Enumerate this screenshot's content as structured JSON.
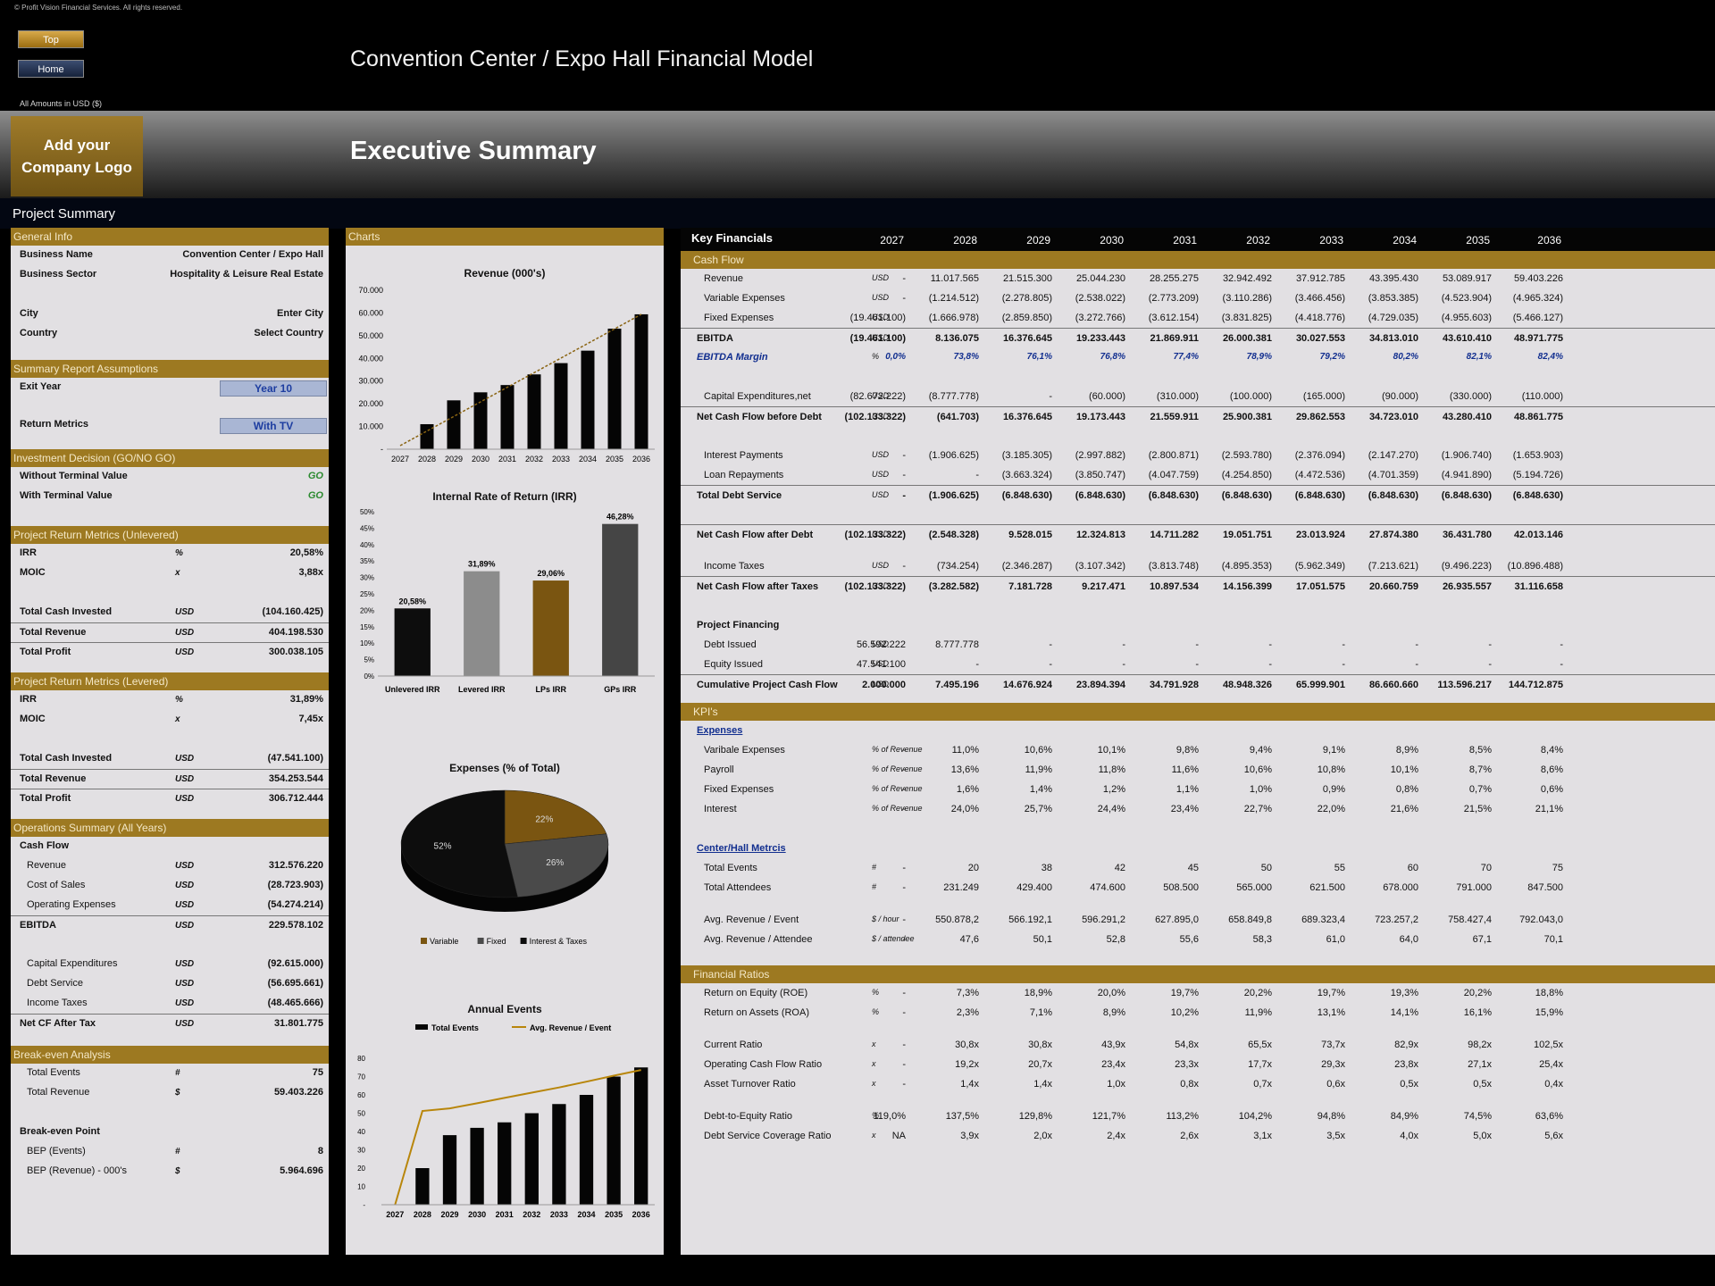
{
  "copyright": "© Profit Vision Financial Services. All rights reserved.",
  "nav": {
    "top": "Top",
    "home": "Home"
  },
  "main_title": "Convention Center / Expo Hall Financial Model",
  "amounts_note": "All Amounts in  USD ($)",
  "logo_line1": "Add your",
  "logo_line2": "Company Logo",
  "exec_title": "Executive Summary",
  "project_summary": "Project Summary",
  "general": {
    "header": "General Info",
    "rows": [
      {
        "label": "Business Name",
        "value": "Convention Center / Expo Hall"
      },
      {
        "label": "Business Sector",
        "value": "Hospitality & Leisure Real Estate"
      },
      {
        "label": "City",
        "value": "Enter City"
      },
      {
        "label": "Country",
        "value": "Select Country"
      }
    ]
  },
  "assumptions": {
    "header": "Summary  Report Assumptions",
    "exit_label": "Exit Year",
    "exit_value": "Year 10",
    "metrics_label": "Return Metrics",
    "metrics_value": "With TV"
  },
  "decision": {
    "header": "Investment Decision (GO/NO GO)",
    "rows": [
      {
        "label": "Without Terminal Value",
        "value": "GO"
      },
      {
        "label": "With Terminal Value",
        "value": "GO"
      }
    ]
  },
  "unlevered": {
    "header": "Project Return Metrics (Unlevered)",
    "rows": [
      {
        "label": "IRR",
        "unit": "%",
        "value": "20,58%"
      },
      {
        "label": "MOIC",
        "unit": "x",
        "value": "3,88x"
      },
      {
        "label": "Total Cash Invested",
        "unit": "USD",
        "value": "(104.160.425)"
      },
      {
        "label": "Total Revenue",
        "unit": "USD",
        "value": "404.198.530"
      },
      {
        "label": "Total Profit",
        "unit": "USD",
        "value": "300.038.105"
      }
    ]
  },
  "levered": {
    "header": "Project Return Metrics (Levered)",
    "rows": [
      {
        "label": "IRR",
        "unit": "%",
        "value": "31,89%"
      },
      {
        "label": "MOIC",
        "unit": "x",
        "value": "7,45x"
      },
      {
        "label": "Total Cash Invested",
        "unit": "USD",
        "value": "(47.541.100)"
      },
      {
        "label": "Total Revenue",
        "unit": "USD",
        "value": "354.253.544"
      },
      {
        "label": "Total Profit",
        "unit": "USD",
        "value": "306.712.444"
      }
    ]
  },
  "operations": {
    "header": "Operations Summary (All Years)",
    "cash_flow": "Cash Flow",
    "rows": [
      {
        "label": "Revenue",
        "unit": "USD",
        "value": "312.576.220"
      },
      {
        "label": "Cost of Sales",
        "unit": "USD",
        "value": "(28.723.903)"
      },
      {
        "label": "Operating Expenses",
        "unit": "USD",
        "value": "(54.274.214)"
      },
      {
        "label": "EBITDA",
        "unit": "USD",
        "value": "229.578.102"
      },
      {
        "label": "Capital Expenditures",
        "unit": "USD",
        "value": "(92.615.000)"
      },
      {
        "label": "Debt Service",
        "unit": "USD",
        "value": "(56.695.661)"
      },
      {
        "label": "Income Taxes",
        "unit": "USD",
        "value": "(48.465.666)"
      },
      {
        "label": "Net CF After Tax",
        "unit": "USD",
        "value": "31.801.775"
      }
    ]
  },
  "breakeven": {
    "header": "Break-even Analysis",
    "rows": [
      {
        "label": "Total Events",
        "unit": "#",
        "value": "75"
      },
      {
        "label": "Total Revenue",
        "unit": "$",
        "value": "59.403.226"
      }
    ],
    "point_label": "Break-even Point",
    "point_rows": [
      {
        "label": "BEP (Events)",
        "unit": "#",
        "value": "8"
      },
      {
        "label": "BEP (Revenue) - 000's",
        "unit": "$",
        "value": "5.964.696"
      }
    ]
  },
  "charts_header": "Charts",
  "chart_data": [
    {
      "type": "bar",
      "title": "Revenue (000's)",
      "categories": [
        "2027",
        "2028",
        "2029",
        "2030",
        "2031",
        "2032",
        "2033",
        "2034",
        "2035",
        "2036"
      ],
      "values": [
        0,
        11018,
        21515,
        25044,
        28255,
        32942,
        37913,
        43395,
        53090,
        59403
      ],
      "ylim": [
        0,
        70000
      ],
      "yticks": [
        "-",
        "10.000",
        "20.000",
        "30.000",
        "40.000",
        "50.000",
        "60.000",
        "70.000"
      ],
      "trendline": true
    },
    {
      "type": "bar",
      "title": "Internal Rate of Return (IRR)",
      "categories": [
        "Unlevered IRR",
        "Levered IRR",
        "LPs IRR",
        "GPs IRR"
      ],
      "values": [
        20.58,
        31.89,
        29.06,
        46.28
      ],
      "labels": [
        "20,58%",
        "31,89%",
        "29,06%",
        "46,28%"
      ],
      "colors": [
        "#0d0d0d",
        "#8c8c8c",
        "#7a5511",
        "#454545"
      ],
      "ylim": [
        0,
        50
      ],
      "yticks": [
        "0%",
        "5%",
        "10%",
        "15%",
        "20%",
        "25%",
        "30%",
        "35%",
        "40%",
        "45%",
        "50%"
      ]
    },
    {
      "type": "pie",
      "title": "Expenses (% of Total)",
      "slices": [
        {
          "name": "Variable",
          "value": 22,
          "label": "22%",
          "color": "#7a5511"
        },
        {
          "name": "Fixed",
          "value": 26,
          "label": "26%",
          "color": "#4a4a4a"
        },
        {
          "name": "Interest & Taxes",
          "value": 52,
          "label": "52%",
          "color": "#0d0d0d"
        }
      ]
    },
    {
      "type": "bar",
      "title": "Annual Events",
      "categories": [
        "2027",
        "2028",
        "2029",
        "2030",
        "2031",
        "2032",
        "2033",
        "2034",
        "2035",
        "2036"
      ],
      "series": [
        {
          "name": "Total Events",
          "values": [
            0,
            20,
            38,
            42,
            45,
            50,
            55,
            60,
            70,
            75
          ]
        },
        {
          "name": "Avg. Revenue / Event",
          "values": [
            0,
            550.9,
            566.2,
            596.3,
            627.9,
            658.8,
            689.3,
            723.3,
            758.4,
            792.0
          ]
        }
      ],
      "ylim": [
        0,
        80
      ],
      "yticks": [
        "-",
        "10",
        "20",
        "30",
        "40",
        "50",
        "60",
        "70",
        "80"
      ]
    }
  ],
  "key": {
    "title": "Key Financials",
    "years": [
      "2027",
      "2028",
      "2029",
      "2030",
      "2031",
      "2032",
      "2033",
      "2034",
      "2035",
      "2036"
    ]
  },
  "cashflow": {
    "header": "Cash Flow",
    "rows": [
      {
        "label": "Revenue",
        "unit": "USD",
        "sub": true,
        "values": [
          "-",
          "11.017.565",
          "21.515.300",
          "25.044.230",
          "28.255.275",
          "32.942.492",
          "37.912.785",
          "43.395.430",
          "53.089.917",
          "59.403.226"
        ]
      },
      {
        "label": "Variable Expenses",
        "unit": "USD",
        "sub": true,
        "values": [
          "-",
          "(1.214.512)",
          "(2.278.805)",
          "(2.538.022)",
          "(2.773.209)",
          "(3.110.286)",
          "(3.466.456)",
          "(3.853.385)",
          "(4.523.904)",
          "(4.965.324)"
        ]
      },
      {
        "label": "Fixed Expenses",
        "unit": "USD",
        "sub": true,
        "values": [
          "(19.461.100)",
          "(1.666.978)",
          "(2.859.850)",
          "(3.272.766)",
          "(3.612.154)",
          "(3.831.825)",
          "(4.418.776)",
          "(4.729.035)",
          "(4.955.603)",
          "(5.466.127)"
        ]
      },
      {
        "label": "EBITDA",
        "unit": "USD",
        "values": [
          "(19.461.100)",
          "8.136.075",
          "16.376.645",
          "19.233.443",
          "21.869.911",
          "26.000.381",
          "30.027.553",
          "34.813.010",
          "43.610.410",
          "48.971.775"
        ]
      },
      {
        "label": "EBITDA Margin",
        "unit": "%",
        "italic": true,
        "values": [
          "0,0%",
          "73,8%",
          "76,1%",
          "76,8%",
          "77,4%",
          "78,9%",
          "79,2%",
          "80,2%",
          "82,1%",
          "82,4%"
        ]
      },
      {
        "label": "Capital Expenditures,net",
        "unit": "USD",
        "sub": true,
        "values": [
          "(82.672.222)",
          "(8.777.778)",
          "-",
          "(60.000)",
          "(310.000)",
          "(100.000)",
          "(165.000)",
          "(90.000)",
          "(330.000)",
          "(110.000)"
        ]
      },
      {
        "label": "Net Cash Flow before Debt",
        "unit": "USD",
        "values": [
          "(102.133.322)",
          "(641.703)",
          "16.376.645",
          "19.173.443",
          "21.559.911",
          "25.900.381",
          "29.862.553",
          "34.723.010",
          "43.280.410",
          "48.861.775"
        ]
      },
      {
        "label": "Interest Payments",
        "unit": "USD",
        "sub": true,
        "values": [
          "-",
          "(1.906.625)",
          "(3.185.305)",
          "(2.997.882)",
          "(2.800.871)",
          "(2.593.780)",
          "(2.376.094)",
          "(2.147.270)",
          "(1.906.740)",
          "(1.653.903)"
        ]
      },
      {
        "label": "Loan Repayments",
        "unit": "USD",
        "sub": true,
        "values": [
          "-",
          "-",
          "(3.663.324)",
          "(3.850.747)",
          "(4.047.759)",
          "(4.254.850)",
          "(4.472.536)",
          "(4.701.359)",
          "(4.941.890)",
          "(5.194.726)"
        ]
      },
      {
        "label": "Total Debt Service",
        "unit": "USD",
        "values": [
          "-",
          "(1.906.625)",
          "(6.848.630)",
          "(6.848.630)",
          "(6.848.630)",
          "(6.848.630)",
          "(6.848.630)",
          "(6.848.630)",
          "(6.848.630)",
          "(6.848.630)"
        ]
      },
      {
        "label": "Net Cash Flow after Debt",
        "unit": "USD",
        "values": [
          "(102.133.322)",
          "(2.548.328)",
          "9.528.015",
          "12.324.813",
          "14.711.282",
          "19.051.751",
          "23.013.924",
          "27.874.380",
          "36.431.780",
          "42.013.146"
        ]
      },
      {
        "label": "Income Taxes",
        "unit": "USD",
        "sub": true,
        "values": [
          "-",
          "(734.254)",
          "(2.346.287)",
          "(3.107.342)",
          "(3.813.748)",
          "(4.895.353)",
          "(5.962.349)",
          "(7.213.621)",
          "(9.496.223)",
          "(10.896.488)"
        ]
      },
      {
        "label": "Net Cash Flow after Taxes",
        "unit": "USD",
        "values": [
          "(102.133.322)",
          "(3.282.582)",
          "7.181.728",
          "9.217.471",
          "10.897.534",
          "14.156.399",
          "17.051.575",
          "20.660.759",
          "26.935.557",
          "31.116.658"
        ]
      },
      {
        "label": "Project Financing",
        "unit": "",
        "values": [
          "",
          "",
          "",
          "",
          "",
          "",
          "",
          "",
          "",
          ""
        ]
      },
      {
        "label": "Debt Issued",
        "unit": "USD",
        "sub": true,
        "values": [
          "56.592.222",
          "8.777.778",
          "-",
          "-",
          "-",
          "-",
          "-",
          "-",
          "-",
          "-"
        ]
      },
      {
        "label": "Equity Issued",
        "unit": "USD",
        "sub": true,
        "values": [
          "47.541.100",
          "-",
          "-",
          "-",
          "-",
          "-",
          "-",
          "-",
          "-",
          "-"
        ]
      },
      {
        "label": "Cumulative Project Cash Flow",
        "unit": "USD",
        "values": [
          "2.000.000",
          "7.495.196",
          "14.676.924",
          "23.894.394",
          "34.791.928",
          "48.948.326",
          "65.999.901",
          "86.660.660",
          "113.596.217",
          "144.712.875"
        ]
      }
    ]
  },
  "kpis": {
    "header": "KPI's",
    "expenses_label": "Expenses",
    "expenses": [
      {
        "label": "Varibale Expenses",
        "unit": "% of Revenue",
        "values": [
          "-",
          "11,0%",
          "10,6%",
          "10,1%",
          "9,8%",
          "9,4%",
          "9,1%",
          "8,9%",
          "8,5%",
          "8,4%"
        ]
      },
      {
        "label": "Payroll",
        "unit": "% of Revenue",
        "values": [
          "-",
          "13,6%",
          "11,9%",
          "11,8%",
          "11,6%",
          "10,6%",
          "10,8%",
          "10,1%",
          "8,7%",
          "8,6%"
        ]
      },
      {
        "label": "Fixed Expenses",
        "unit": "% of Revenue",
        "values": [
          "-",
          "1,6%",
          "1,4%",
          "1,2%",
          "1,1%",
          "1,0%",
          "0,9%",
          "0,8%",
          "0,7%",
          "0,6%"
        ]
      },
      {
        "label": "Interest",
        "unit": "% of Revenue",
        "values": [
          "-",
          "24,0%",
          "25,7%",
          "24,4%",
          "23,4%",
          "22,7%",
          "22,0%",
          "21,6%",
          "21,5%",
          "21,1%"
        ]
      }
    ],
    "center_label": "Center/Hall Metrcis",
    "center": [
      {
        "label": "Total Events",
        "unit": "#",
        "values": [
          "-",
          "20",
          "38",
          "42",
          "45",
          "50",
          "55",
          "60",
          "70",
          "75"
        ]
      },
      {
        "label": "Total Attendees",
        "unit": "#",
        "values": [
          "-",
          "231.249",
          "429.400",
          "474.600",
          "508.500",
          "565.000",
          "621.500",
          "678.000",
          "791.000",
          "847.500"
        ]
      },
      {
        "label": "Avg. Revenue / Event",
        "unit": "$ / hour",
        "values": [
          "-",
          "550.878,2",
          "566.192,1",
          "596.291,2",
          "627.895,0",
          "658.849,8",
          "689.323,4",
          "723.257,2",
          "758.427,4",
          "792.043,0"
        ]
      },
      {
        "label": "Avg. Revenue / Attendee",
        "unit": "$ / attendee",
        "values": [
          "-",
          "47,6",
          "50,1",
          "52,8",
          "55,6",
          "58,3",
          "61,0",
          "64,0",
          "67,1",
          "70,1"
        ]
      }
    ]
  },
  "ratios": {
    "header": "Financial Ratios",
    "rows": [
      {
        "label": "Return on Equity (ROE)",
        "unit": "%",
        "values": [
          "-",
          "7,3%",
          "18,9%",
          "20,0%",
          "19,7%",
          "20,2%",
          "19,7%",
          "19,3%",
          "20,2%",
          "18,8%"
        ]
      },
      {
        "label": "Return on Assets (ROA)",
        "unit": "%",
        "values": [
          "-",
          "2,3%",
          "7,1%",
          "8,9%",
          "10,2%",
          "11,9%",
          "13,1%",
          "14,1%",
          "16,1%",
          "15,9%"
        ]
      },
      {
        "label": "Current Ratio",
        "unit": "x",
        "values": [
          "-",
          "30,8x",
          "30,8x",
          "43,9x",
          "54,8x",
          "65,5x",
          "73,7x",
          "82,9x",
          "98,2x",
          "102,5x"
        ]
      },
      {
        "label": "Operating Cash Flow Ratio",
        "unit": "x",
        "values": [
          "-",
          "19,2x",
          "20,7x",
          "23,4x",
          "23,3x",
          "17,7x",
          "29,3x",
          "23,8x",
          "27,1x",
          "25,4x"
        ]
      },
      {
        "label": "Asset Turnover Ratio",
        "unit": "x",
        "values": [
          "-",
          "1,4x",
          "1,4x",
          "1,0x",
          "0,8x",
          "0,7x",
          "0,6x",
          "0,5x",
          "0,5x",
          "0,4x"
        ]
      },
      {
        "label": "Debt-to-Equity Ratio",
        "unit": "%",
        "values": [
          "119,0%",
          "137,5%",
          "129,8%",
          "121,7%",
          "113,2%",
          "104,2%",
          "94,8%",
          "84,9%",
          "74,5%",
          "63,6%"
        ]
      },
      {
        "label": "Debt Service Coverage Ratio",
        "unit": "x",
        "values": [
          "NA",
          "3,9x",
          "2,0x",
          "2,4x",
          "2,6x",
          "3,1x",
          "3,5x",
          "4,0x",
          "5,0x",
          "5,6x"
        ]
      }
    ]
  }
}
